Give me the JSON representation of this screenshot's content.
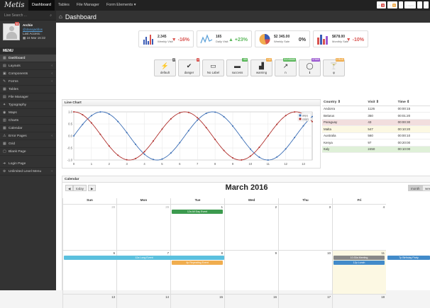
{
  "topbar": {
    "logo": "Metis",
    "nav": [
      "Dashboard",
      "Tables",
      "File Manager",
      "Form Elements ▾"
    ],
    "icons": [
      {
        "name": "mail-icon",
        "glyph": "✉",
        "badge": "8",
        "color": "#d9534f"
      },
      {
        "name": "comment-icon",
        "glyph": "✎",
        "badge": "5",
        "color": "#f0ad4e"
      },
      {
        "name": "help-icon",
        "glyph": "?",
        "badge": "",
        "color": ""
      },
      {
        "name": "logout-button",
        "glyph": "Logout",
        "badge": "",
        "color": ""
      },
      {
        "name": "menu-icon",
        "glyph": "≡",
        "badge": "",
        "color": ""
      },
      {
        "name": "fullscreen-icon",
        "glyph": "⤢",
        "badge": "",
        "color": ""
      }
    ]
  },
  "sidebar": {
    "search_placeholder": "Live Search ...",
    "user": {
      "name": "Archie",
      "email": "@danajaddos",
      "last_access_label": "Last Access :",
      "last_access_value": "16 Mar 16:32",
      "msg_badge": "56"
    },
    "menu_title": "MENU",
    "items": [
      {
        "label": "Dashboard",
        "icon": "▦",
        "chev": ""
      },
      {
        "label": "Layouts",
        "icon": "▤",
        "chev": "‹"
      },
      {
        "label": "Components",
        "icon": "▣",
        "chev": "‹"
      },
      {
        "label": "Forms",
        "icon": "✎",
        "chev": "‹"
      },
      {
        "label": "Tables",
        "icon": "▦",
        "chev": ""
      },
      {
        "label": "File Manager",
        "icon": "▤",
        "chev": ""
      },
      {
        "label": "Typography",
        "icon": "✦",
        "chev": ""
      },
      {
        "label": "Maps",
        "icon": "◉",
        "chev": ""
      },
      {
        "label": "Charts",
        "icon": "▥",
        "chev": ""
      },
      {
        "label": "Calendar",
        "icon": "▦",
        "chev": ""
      },
      {
        "label": "Error Pages",
        "icon": "⚠",
        "chev": "‹"
      },
      {
        "label": "Grid",
        "icon": "▦",
        "chev": ""
      },
      {
        "label": "Blank Page",
        "icon": "▢",
        "chev": ""
      },
      {
        "label": "Login Page",
        "icon": "➜",
        "chev": ""
      },
      {
        "label": "Unlimited Level Menu",
        "icon": "⊕",
        "chev": "‹"
      }
    ]
  },
  "header": {
    "title": "Dashboard"
  },
  "stats": [
    {
      "value": "2.345",
      "label": "Weekly Visit",
      "pct": "▼ -16%",
      "pct_color": "#d9534f",
      "icon": "bar"
    },
    {
      "value": "165",
      "label": "Daily Visit",
      "pct": "▲ +23%",
      "pct_color": "#5cb85c",
      "icon": "line"
    },
    {
      "value": "$2 345.00",
      "label": "Weekly Sale",
      "pct": "0%",
      "pct_color": "#333",
      "icon": "pie"
    },
    {
      "value": "$678.00",
      "label": "Monthly Sale",
      "pct": "▼ -10%",
      "pct_color": "#d9534f",
      "icon": "bar2"
    }
  ],
  "actions": [
    {
      "label": "default",
      "glyph": "⚡",
      "badge": "2",
      "badge_color": "#777"
    },
    {
      "label": "danger",
      "glyph": "✔",
      "badge": "4",
      "badge_color": "#d9534f"
    },
    {
      "label": "No Label",
      "glyph": "▭",
      "badge": "",
      "badge_color": ""
    },
    {
      "label": "success",
      "glyph": "▬",
      "badge": "+89",
      "badge_color": "#5cb85c"
    },
    {
      "label": "warning",
      "glyph": "▟",
      "badge": "+12",
      "badge_color": "#f0ad4e"
    },
    {
      "label": "n",
      "glyph": "↗",
      "badge": "$1245689",
      "badge_color": "#5cb85c"
    },
    {
      "label": "ℹ",
      "glyph": "◯",
      "badge": "$7865",
      "badge_color": "#9b59d0"
    },
    {
      "label": "φ",
      "glyph": "🍸",
      "badge": "2 RUS",
      "badge_color": "#f0ad4e"
    }
  ],
  "line_chart": {
    "title": "Line Chart"
  },
  "chart_data": {
    "type": "line",
    "title": "",
    "xlim": [
      0,
      13.5
    ],
    "ylim": [
      -1,
      1
    ],
    "xticks": [
      0,
      1,
      2,
      3,
      4,
      5,
      6,
      7,
      8,
      9,
      10,
      11,
      12,
      13
    ],
    "yticks": [
      1.0,
      0.5,
      0.0,
      -0.5,
      -1.0
    ],
    "ytick_labels": [
      "1.0",
      "0.5",
      "0.0",
      "-0.5",
      "-1.0"
    ],
    "series": [
      {
        "name": "sin(x)",
        "color": "#3a6db5",
        "function": "sin"
      },
      {
        "name": "cos(x)",
        "color": "#b0302d",
        "function": "cos"
      }
    ],
    "legend": "top-right",
    "grid": true
  },
  "country_table": {
    "headers": [
      "Country ⇕",
      "Visit ⇕",
      "Time ⇕"
    ],
    "rows": [
      {
        "cells": [
          "Andorra",
          "1126",
          "00:00:15"
        ],
        "bg": ""
      },
      {
        "cells": [
          "Belarus",
          "350",
          "00:01:20"
        ],
        "bg": ""
      },
      {
        "cells": [
          "Paraguay",
          "43",
          "00:00:30"
        ],
        "bg": "#f2dede"
      },
      {
        "cells": [
          "Malta",
          "547",
          "00:10:20"
        ],
        "bg": "#fcf8e3"
      },
      {
        "cells": [
          "Australia",
          "560",
          "00:00:10"
        ],
        "bg": ""
      },
      {
        "cells": [
          "Kenya",
          "97",
          "00:20:00"
        ],
        "bg": ""
      },
      {
        "cells": [
          "Italy",
          "2450",
          "00:10:00"
        ],
        "bg": "#dff0d8"
      }
    ]
  },
  "calendar": {
    "box_title": "Calendar",
    "prev": "◀",
    "today": "today",
    "next": "▶",
    "title": "March 2016",
    "month_btn": "month",
    "week_btn": "week",
    "days": [
      "Sun",
      "Mon",
      "Tue",
      "Wed",
      "Thu",
      "Fri"
    ],
    "row1": [
      "28",
      "29",
      "1",
      "2",
      "3",
      "4"
    ],
    "row2": [
      "6",
      "7",
      "8",
      "9",
      "10",
      "11"
    ],
    "row3": [
      "13",
      "14",
      "15",
      "16",
      "17",
      "18"
    ],
    "events": [
      {
        "label": "12a All Day Event",
        "color": "#3c9a4e"
      },
      {
        "label": "12a Long Event",
        "color": "#5bc0de"
      },
      {
        "label": "4p Repeating Event",
        "color": "#f0ad4e"
      },
      {
        "label": "10:30a Meeting",
        "color": "#888"
      },
      {
        "label": "12p Lunch",
        "color": "#428bca"
      },
      {
        "label": "7p Birthday Party",
        "color": "#428bca"
      }
    ]
  }
}
